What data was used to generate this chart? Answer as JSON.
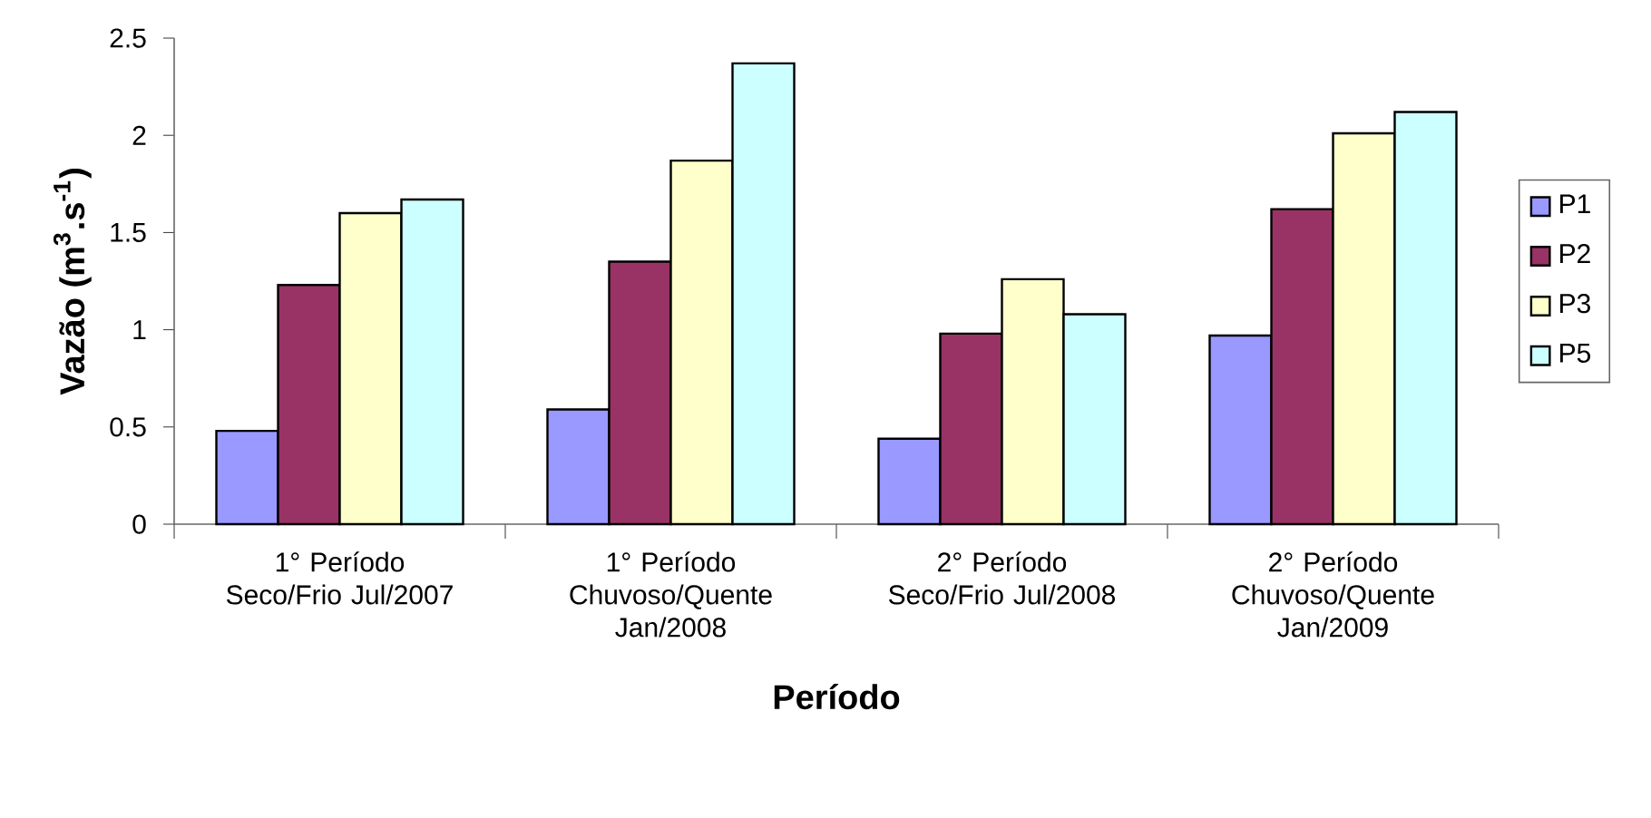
{
  "chart_data": {
    "type": "bar",
    "xlabel": "Período",
    "ylabel": "Vazão (m$^{3}$.s$^{-1}$)",
    "categories": [
      "1° Período Seco/Frio Jul/2007",
      "1° Período Chuvoso/Quente Jan/2008",
      "2° Período Seco/Frio Jul/2008",
      "2° Período Chuvoso/Quente Jan/2009"
    ],
    "series": [
      {
        "name": "P1",
        "color": "#9999ff",
        "values": [
          0.48,
          0.59,
          0.44,
          0.97
        ]
      },
      {
        "name": "P2",
        "color": "#993366",
        "values": [
          1.23,
          1.35,
          0.98,
          1.62
        ]
      },
      {
        "name": "P3",
        "color": "#ffffcc",
        "values": [
          1.6,
          1.87,
          1.26,
          2.01
        ]
      },
      {
        "name": "P5",
        "color": "#ccffff",
        "values": [
          1.67,
          2.37,
          1.08,
          2.12
        ]
      }
    ],
    "ylim": [
      0,
      2.5
    ],
    "yticks": [
      0,
      0.5,
      1,
      1.5,
      2,
      2.5
    ],
    "legend": "right"
  }
}
